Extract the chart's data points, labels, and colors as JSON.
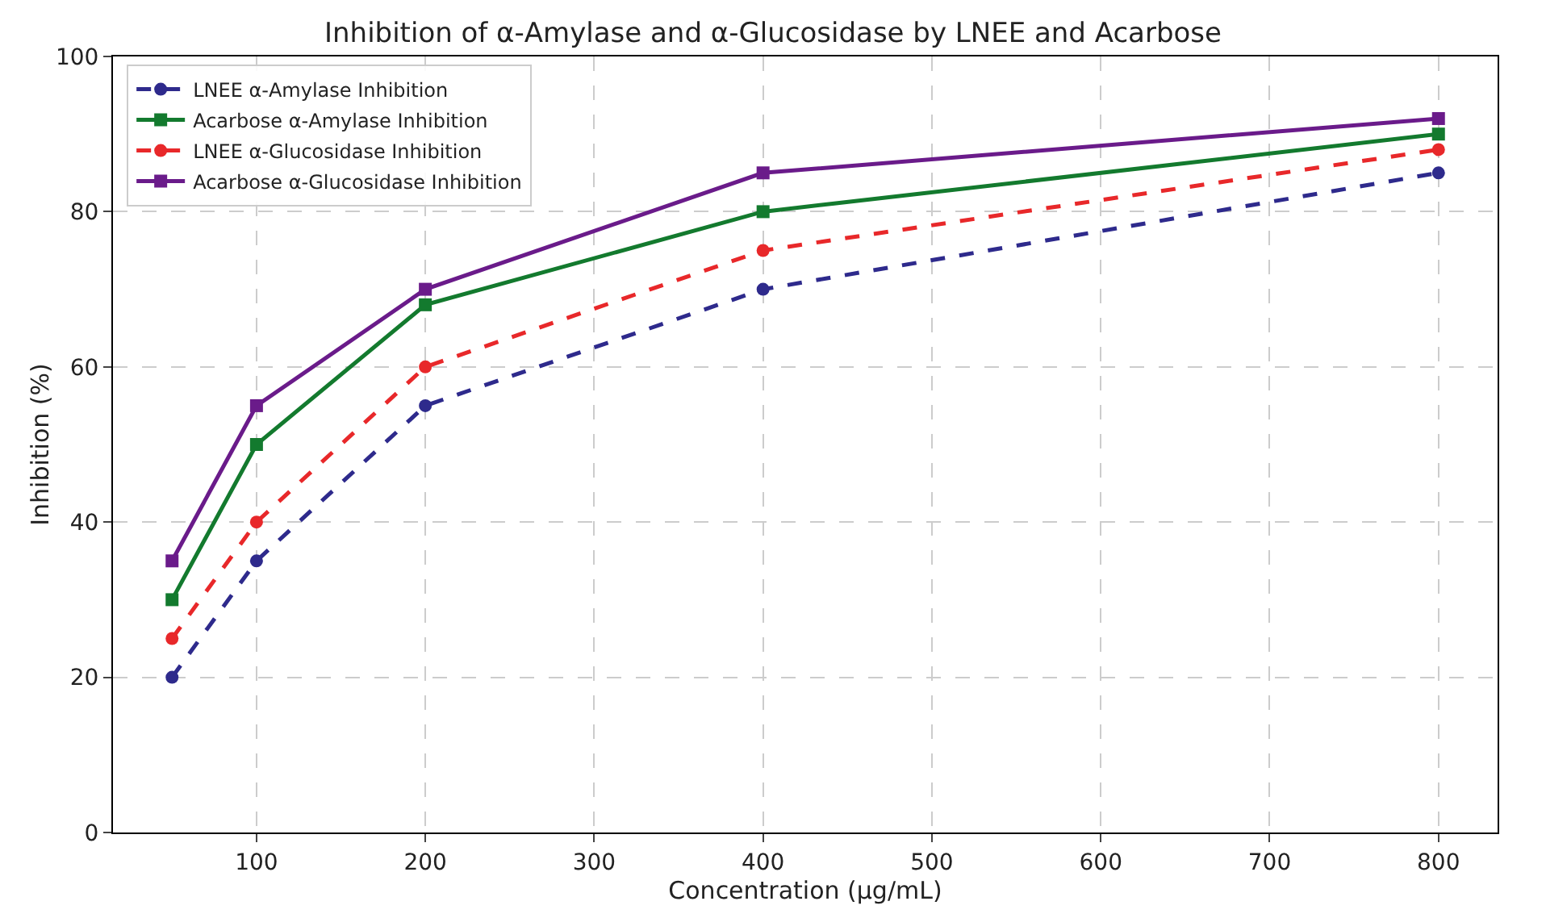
{
  "chart_data": {
    "type": "line",
    "title": "Inhibition of α-Amylase and α-Glucosidase by LNEE and Acarbose",
    "xlabel": "Concentration (µg/mL)",
    "ylabel": "Inhibition (%)",
    "x": [
      50,
      100,
      200,
      400,
      800
    ],
    "series": [
      {
        "name": "LNEE α-Amylase Inhibition",
        "color": "#2e2a8c",
        "values": [
          20,
          35,
          55,
          70,
          85
        ],
        "marker": "circle",
        "line_style": "dashed"
      },
      {
        "name": "Acarbose α-Amylase Inhibition",
        "color": "#137a2e",
        "values": [
          30,
          50,
          68,
          80,
          90
        ],
        "marker": "square",
        "line_style": "solid"
      },
      {
        "name": "LNEE α-Glucosidase Inhibition",
        "color": "#e8282a",
        "values": [
          25,
          40,
          60,
          75,
          88
        ],
        "marker": "circle",
        "line_style": "dashed"
      },
      {
        "name": "Acarbose α-Glucosidase Inhibition",
        "color": "#6a1b8a",
        "values": [
          35,
          55,
          70,
          85,
          92
        ],
        "marker": "square",
        "line_style": "solid"
      }
    ],
    "xlim": [
      15,
      835
    ],
    "xticks": [
      100,
      200,
      300,
      400,
      500,
      600,
      700,
      800
    ],
    "ylim": [
      0,
      100
    ],
    "yticks": [
      0,
      20,
      40,
      60,
      80,
      100
    ],
    "grid": true,
    "legend": "top left"
  }
}
